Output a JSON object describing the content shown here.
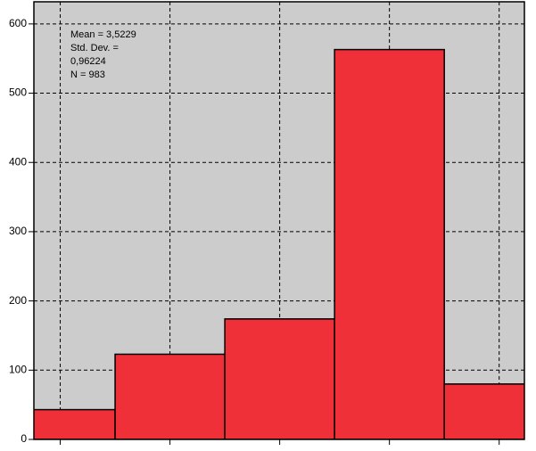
{
  "chart_data": {
    "type": "histogram",
    "bins": [
      0.5,
      1.5,
      2.5,
      3.5,
      4.5,
      5.5
    ],
    "values": [
      43,
      123,
      174,
      563,
      80
    ],
    "color": "#ef3039",
    "background": "#cccccc",
    "xlim": [
      0.76,
      5.23
    ],
    "xticks": [
      1,
      2,
      3,
      4,
      5
    ],
    "ylim": [
      0,
      632
    ],
    "yticks": [
      0,
      100,
      200,
      300,
      400,
      500,
      600
    ],
    "grid": true,
    "annotations": [
      "Mean = 3,5229",
      "Std. Dev. =",
      "0,96224",
      "N = 983"
    ]
  }
}
